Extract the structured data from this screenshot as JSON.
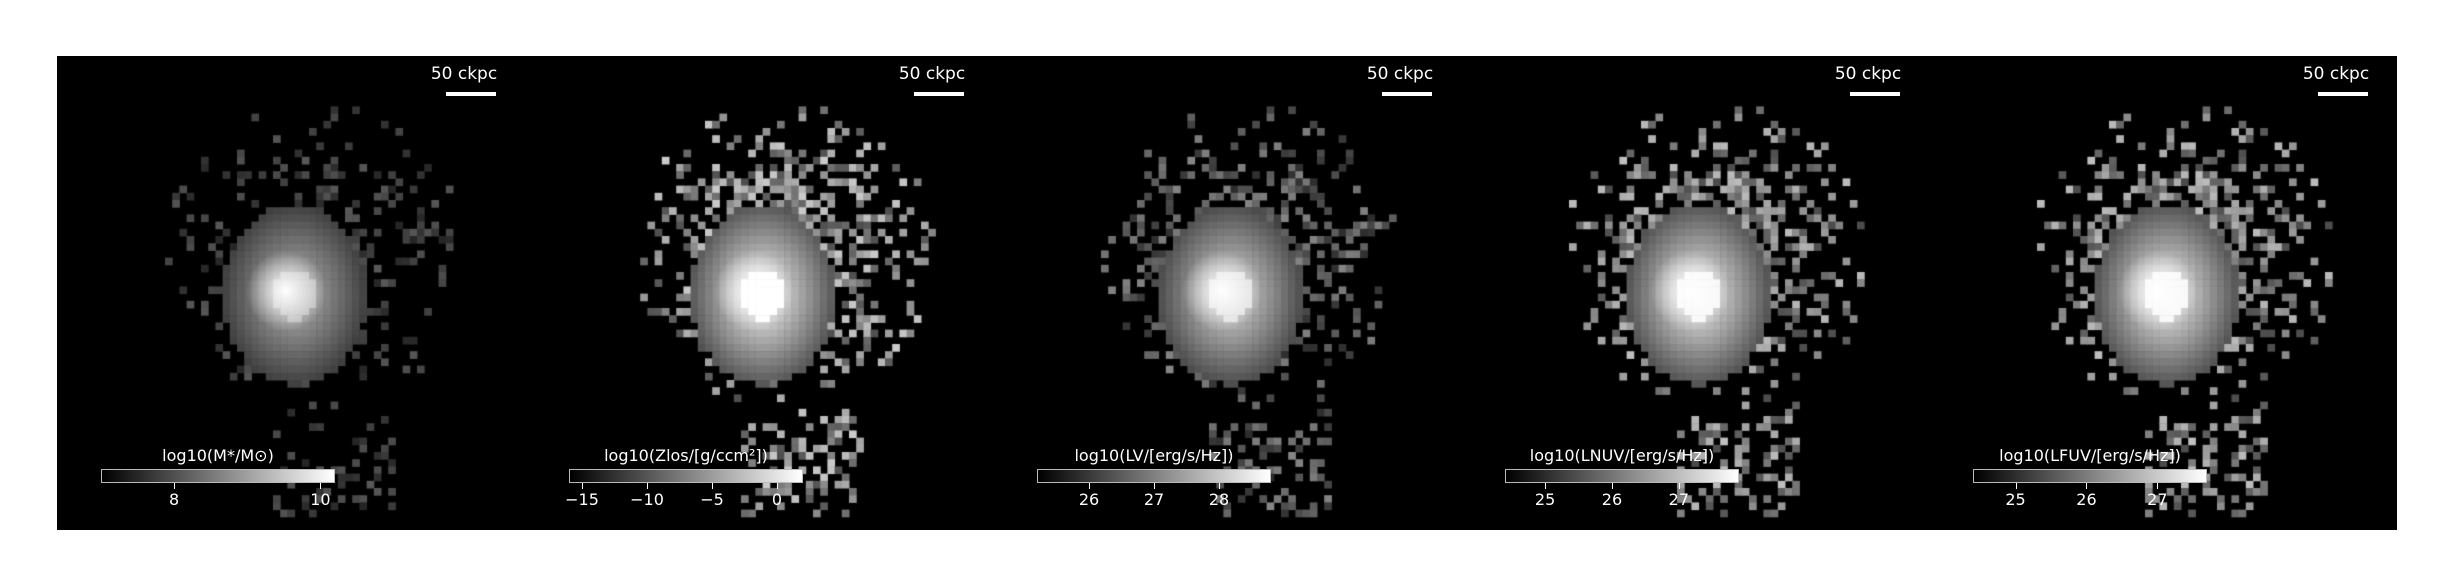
{
  "image": {
    "description_colors": {
      "background": "#000000",
      "foreground": "#ffffff",
      "page": "#ffffff"
    },
    "panels": [
      {
        "scalebar": "50 ckpc",
        "colorbar": {
          "title": "log10(M*/M⊙)",
          "range": [
            7.0,
            10.2
          ],
          "ticks": [
            {
              "label": "8",
              "value": 8
            },
            {
              "label": "10",
              "value": 10
            }
          ]
        },
        "spread": 0.55
      },
      {
        "scalebar": "50 ckpc",
        "colorbar": {
          "title": "log10(Zlos/[g/ccm²])",
          "range": [
            -16,
            2
          ],
          "ticks": [
            {
              "label": "−15",
              "value": -15
            },
            {
              "label": "−10",
              "value": -10
            },
            {
              "label": "−5",
              "value": -5
            },
            {
              "label": "0",
              "value": 0
            }
          ]
        },
        "spread": 1.0
      },
      {
        "scalebar": "50 ckpc",
        "colorbar": {
          "title": "log10(LV/[erg/s/Hz])",
          "range": [
            25.2,
            28.8
          ],
          "ticks": [
            {
              "label": "26",
              "value": 26
            },
            {
              "label": "27",
              "value": 27
            },
            {
              "label": "28",
              "value": 28
            }
          ]
        },
        "spread": 0.8
      },
      {
        "scalebar": "50 ckpc",
        "colorbar": {
          "title": "log10(LNUV/[erg/s/Hz])",
          "range": [
            24.4,
            27.9
          ],
          "ticks": [
            {
              "label": "25",
              "value": 25
            },
            {
              "label": "26",
              "value": 26
            },
            {
              "label": "27",
              "value": 27
            }
          ]
        },
        "spread": 0.95
      },
      {
        "scalebar": "50 ckpc",
        "colorbar": {
          "title": "log10(LFUV/[erg/s/Hz])",
          "range": [
            24.4,
            27.7
          ],
          "ticks": [
            {
              "label": "25",
              "value": 25
            },
            {
              "label": "26",
              "value": 26
            },
            {
              "label": "27",
              "value": 27
            }
          ]
        },
        "spread": 0.95
      }
    ]
  }
}
